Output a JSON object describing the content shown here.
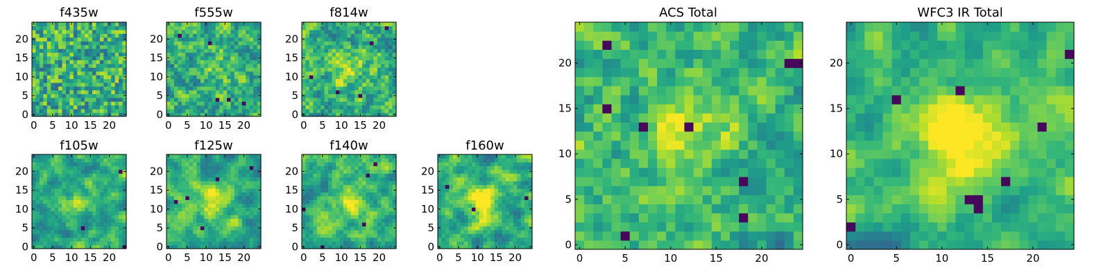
{
  "colormap": "viridis",
  "chart_data": [
    {
      "type": "heatmap",
      "title": "f435w",
      "x_ticks": [
        0,
        5,
        10,
        15,
        20
      ],
      "y_ticks": [
        0,
        5,
        10,
        15,
        20
      ],
      "xlim": [
        0,
        25
      ],
      "ylim": [
        0,
        25
      ],
      "grid_size": 25,
      "smoothness": 0.05,
      "seed": 11,
      "center_peak": 0.0,
      "dark_spots": []
    },
    {
      "type": "heatmap",
      "title": "f555w",
      "x_ticks": [
        0,
        5,
        10,
        15,
        20
      ],
      "y_ticks": [
        0,
        5,
        10,
        15,
        20
      ],
      "xlim": [
        0,
        25
      ],
      "ylim": [
        0,
        25
      ],
      "grid_size": 25,
      "smoothness": 0.15,
      "seed": 23,
      "center_peak": 0.15,
      "dark_spots": [
        [
          3,
          21
        ],
        [
          11,
          19
        ],
        [
          13,
          4
        ],
        [
          16,
          4
        ],
        [
          20,
          3
        ]
      ]
    },
    {
      "type": "heatmap",
      "title": "f814w",
      "x_ticks": [
        0,
        5,
        10,
        15,
        20
      ],
      "y_ticks": [
        0,
        5,
        10,
        15,
        20
      ],
      "xlim": [
        0,
        25
      ],
      "ylim": [
        0,
        25
      ],
      "grid_size": 25,
      "smoothness": 0.15,
      "seed": 37,
      "center_peak": 0.25,
      "dark_spots": [
        [
          2,
          10
        ],
        [
          9,
          6
        ],
        [
          15,
          5
        ],
        [
          18,
          19
        ],
        [
          22,
          23
        ]
      ]
    },
    {
      "type": "heatmap",
      "title": "f105w",
      "x_ticks": [
        0,
        5,
        10,
        15,
        20
      ],
      "y_ticks": [
        0,
        5,
        10,
        15,
        20
      ],
      "xlim": [
        0,
        25
      ],
      "ylim": [
        0,
        25
      ],
      "grid_size": 25,
      "smoothness": 0.45,
      "seed": 41,
      "center_peak": 0.25,
      "dark_spots": [
        [
          13,
          5
        ],
        [
          23,
          20
        ],
        [
          24,
          0
        ]
      ]
    },
    {
      "type": "heatmap",
      "title": "f125w",
      "x_ticks": [
        0,
        5,
        10,
        15,
        20
      ],
      "y_ticks": [
        0,
        5,
        10,
        15,
        20
      ],
      "xlim": [
        0,
        25
      ],
      "ylim": [
        0,
        25
      ],
      "grid_size": 25,
      "smoothness": 0.45,
      "seed": 53,
      "center_peak": 0.3,
      "dark_spots": [
        [
          2,
          12
        ],
        [
          5,
          13
        ],
        [
          9,
          5
        ],
        [
          13,
          18
        ],
        [
          22,
          21
        ]
      ]
    },
    {
      "type": "heatmap",
      "title": "f140w",
      "x_ticks": [
        0,
        5,
        10,
        15,
        20
      ],
      "y_ticks": [
        0,
        5,
        10,
        15,
        20
      ],
      "xlim": [
        0,
        25
      ],
      "ylim": [
        0,
        25
      ],
      "grid_size": 25,
      "smoothness": 0.5,
      "seed": 67,
      "center_peak": 0.25,
      "dark_spots": [
        [
          0,
          10
        ],
        [
          5,
          0
        ],
        [
          16,
          6
        ],
        [
          17,
          19
        ],
        [
          19,
          22
        ]
      ]
    },
    {
      "type": "heatmap",
      "title": "f160w",
      "x_ticks": [
        0,
        5,
        10,
        15,
        20
      ],
      "y_ticks": [
        0,
        5,
        10,
        15,
        20
      ],
      "xlim": [
        0,
        25
      ],
      "ylim": [
        0,
        25
      ],
      "grid_size": 25,
      "smoothness": 0.55,
      "seed": 71,
      "center_peak": 0.45,
      "dark_spots": [
        [
          2,
          16
        ],
        [
          9,
          10
        ],
        [
          23,
          13
        ]
      ]
    },
    {
      "type": "heatmap",
      "title": "ACS Total",
      "x_ticks": [
        0,
        5,
        10,
        15,
        20
      ],
      "y_ticks": [
        0,
        5,
        10,
        15,
        20
      ],
      "xlim": [
        0,
        25
      ],
      "ylim": [
        0,
        25
      ],
      "grid_size": 25,
      "smoothness": 0.2,
      "seed": 83,
      "center_peak": 0.35,
      "dark_spots": [
        [
          3,
          22
        ],
        [
          3,
          15
        ],
        [
          7,
          13
        ],
        [
          12,
          13
        ],
        [
          18,
          7
        ],
        [
          18,
          3
        ],
        [
          24,
          20
        ],
        [
          23,
          20
        ],
        [
          5,
          1
        ]
      ]
    },
    {
      "type": "heatmap",
      "title": "WFC3 IR Total",
      "x_ticks": [
        0,
        5,
        10,
        15,
        20
      ],
      "y_ticks": [
        0,
        5,
        10,
        15,
        20
      ],
      "xlim": [
        0,
        25
      ],
      "ylim": [
        0,
        25
      ],
      "grid_size": 25,
      "smoothness": 0.4,
      "seed": 97,
      "center_peak": 0.45,
      "dark_spots": [
        [
          5,
          16
        ],
        [
          12,
          17
        ],
        [
          13,
          5
        ],
        [
          14,
          5
        ],
        [
          14,
          4
        ],
        [
          17,
          7
        ],
        [
          21,
          13
        ],
        [
          0,
          2
        ],
        [
          24,
          21
        ]
      ]
    }
  ]
}
